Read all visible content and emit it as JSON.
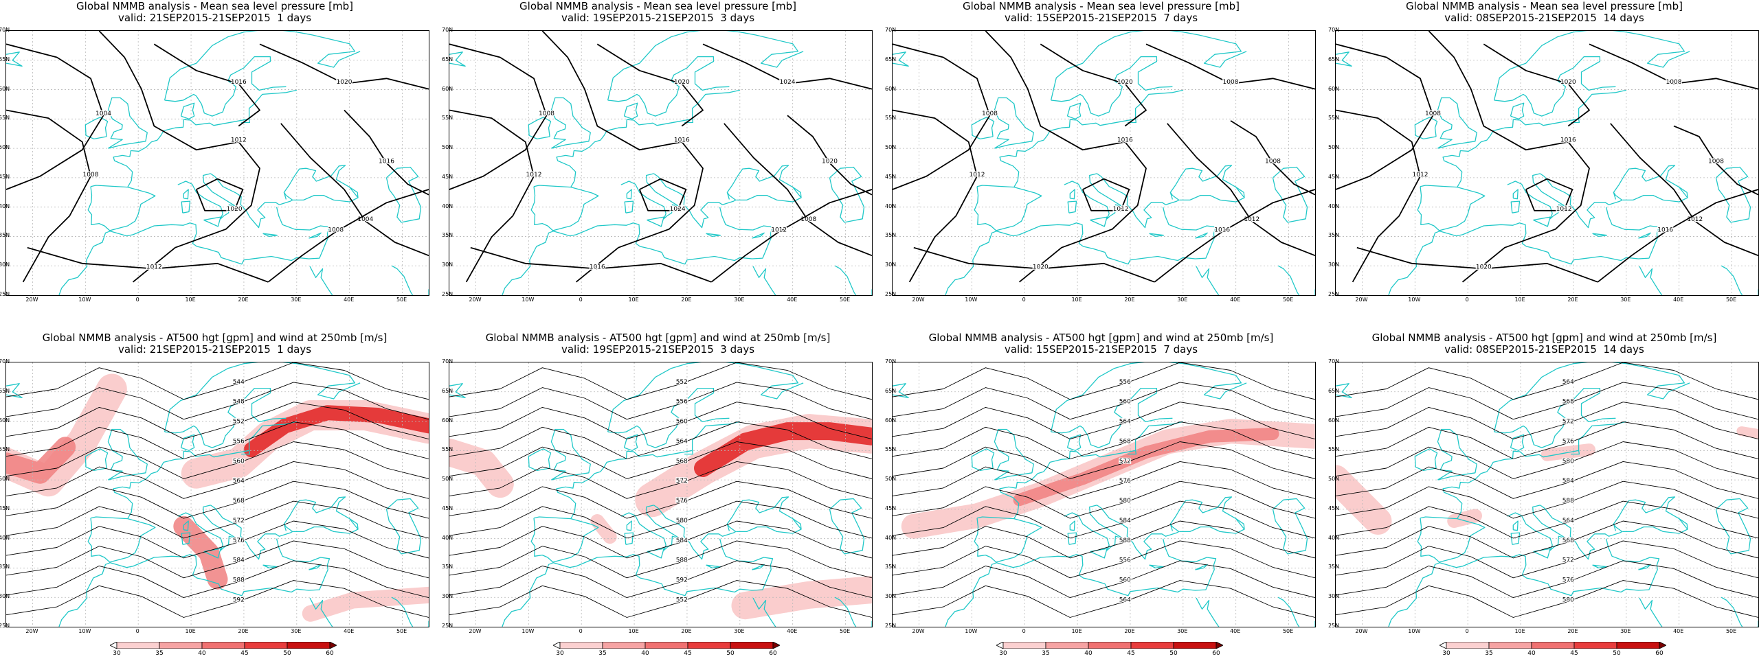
{
  "panels": [
    {
      "id": "p1",
      "title": "Global NMMB analysis - Mean sea level pressure [mb]",
      "subtitle": "valid: 21SEP2015-21SEP2015  1 days",
      "kind": "mslp"
    },
    {
      "id": "p2",
      "title": "Global NMMB analysis - Mean sea level pressure [mb]",
      "subtitle": "valid: 19SEP2015-21SEP2015  3 days",
      "kind": "mslp"
    },
    {
      "id": "p3",
      "title": "Global NMMB analysis - Mean sea level pressure [mb]",
      "subtitle": "valid: 15SEP2015-21SEP2015  7 days",
      "kind": "mslp"
    },
    {
      "id": "p4",
      "title": "Global NMMB analysis - Mean sea level pressure [mb]",
      "subtitle": "valid: 08SEP2015-21SEP2015  14 days",
      "kind": "mslp"
    },
    {
      "id": "p5",
      "title": "Global NMMB analysis - AT500 hgt [gpm] and wind at 250mb [m/s]",
      "subtitle": "valid: 21SEP2015-21SEP2015  1 days",
      "kind": "z500"
    },
    {
      "id": "p6",
      "title": "Global NMMB analysis - AT500 hgt [gpm] and wind at 250mb [m/s]",
      "subtitle": "valid: 19SEP2015-21SEP2015  3 days",
      "kind": "z500"
    },
    {
      "id": "p7",
      "title": "Global NMMB analysis - AT500 hgt [gpm] and wind at 250mb [m/s]",
      "subtitle": "valid: 15SEP2015-21SEP2015  7 days",
      "kind": "z500"
    },
    {
      "id": "p8",
      "title": "Global NMMB analysis - AT500 hgt [gpm] and wind at 250mb [m/s]",
      "subtitle": "valid: 08SEP2015-21SEP2015  14 days",
      "kind": "z500"
    }
  ],
  "lat_labels": [
    "70N",
    "65N",
    "60N",
    "55N",
    "50N",
    "45N",
    "40N",
    "35N",
    "30N",
    "25N"
  ],
  "lon_labels": [
    "20W",
    "10W",
    "0",
    "10E",
    "20E",
    "30E",
    "40E",
    "50E"
  ],
  "colorbar": {
    "ticks": [
      "30",
      "35",
      "40",
      "45",
      "50",
      "60"
    ],
    "colors": [
      "#ffffff",
      "#fbd0d0",
      "#f6a3a3",
      "#f07171",
      "#e83c3c",
      "#c81010",
      "#7a0000"
    ]
  },
  "colors": {
    "coast": "#20c8c8",
    "contour": "#000000",
    "grid": "#b8b8b8",
    "wind_light": "#f9c4c4",
    "wind_mid": "#f08080",
    "wind_strong": "#e02020"
  },
  "chart_data": [
    {
      "type": "map",
      "panel": "p1",
      "field": "mean sea level pressure",
      "units": "mb",
      "contour_labels": [
        "1004",
        "1008",
        "1012",
        "1016",
        "1020"
      ]
    },
    {
      "type": "map",
      "panel": "p2",
      "field": "mean sea level pressure",
      "units": "mb",
      "contour_labels": [
        "1008",
        "1012",
        "1016",
        "1020",
        "1024"
      ]
    },
    {
      "type": "map",
      "panel": "p3",
      "field": "mean sea level pressure",
      "units": "mb",
      "contour_labels": [
        "1008",
        "1012",
        "1016",
        "1020"
      ]
    },
    {
      "type": "map",
      "panel": "p4",
      "field": "mean sea level pressure",
      "units": "mb",
      "contour_labels": [
        "1008",
        "1012",
        "1016",
        "1020"
      ]
    },
    {
      "type": "map",
      "panel": "p5",
      "field": "500hPa geopotential height / 250mb wind",
      "units": "gpm, m/s",
      "contour_labels": [
        "544",
        "548",
        "552",
        "556",
        "560",
        "564",
        "568",
        "572",
        "576",
        "584",
        "588",
        "592"
      ]
    },
    {
      "type": "map",
      "panel": "p6",
      "field": "500hPa geopotential height / 250mb wind",
      "units": "gpm, m/s",
      "contour_labels": [
        "552",
        "556",
        "560",
        "564",
        "568",
        "572",
        "576",
        "580",
        "584",
        "588",
        "592"
      ]
    },
    {
      "type": "map",
      "panel": "p7",
      "field": "500hPa geopotential height / 250mb wind",
      "units": "gpm, m/s",
      "contour_labels": [
        "556",
        "560",
        "564",
        "568",
        "572",
        "576",
        "580",
        "584",
        "588"
      ]
    },
    {
      "type": "map",
      "panel": "p8",
      "field": "500hPa geopotential height / 250mb wind",
      "units": "gpm, m/s",
      "contour_labels": [
        "564",
        "568",
        "572",
        "576",
        "580",
        "584",
        "588"
      ]
    }
  ]
}
